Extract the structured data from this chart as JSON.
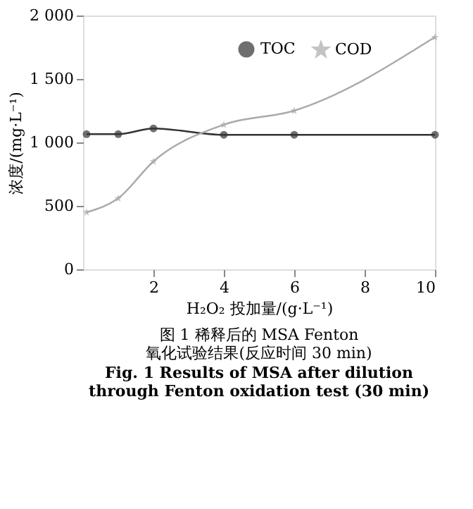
{
  "chart_data": {
    "type": "line",
    "title": "图 1  稀释后的 MSA Fenton 氧化试验结果(反应时间 30 min)",
    "subtitle": "Fig. 1  Results of MSA after dilution through Fenton oxidation test (30 min)",
    "xlabel": "H₂O₂ 投加量/(g·L⁻¹)",
    "ylabel": "浓度/(mg·L⁻¹)",
    "x": [
      0.1,
      1,
      2,
      4,
      6,
      10
    ],
    "series": [
      {
        "name": "TOC",
        "color": "#333333",
        "marker": "circle",
        "values": [
          1065,
          1065,
          1110,
          1060,
          1060,
          1060
        ]
      },
      {
        "name": "COD",
        "color": "#aaaaaa",
        "marker": "star",
        "values": [
          450,
          560,
          850,
          1140,
          1250,
          1830
        ]
      }
    ],
    "xlim": [
      0,
      10
    ],
    "xticks": [
      2,
      4,
      6,
      8,
      10
    ],
    "ylim": [
      0,
      2000
    ],
    "yticks": [
      0,
      500,
      {
        "value": 1000,
        "label": "1 000"
      },
      {
        "value": 1500,
        "label": "1 500"
      },
      {
        "value": 2000,
        "label": "2 000"
      }
    ],
    "legend": "top",
    "grid": false
  }
}
